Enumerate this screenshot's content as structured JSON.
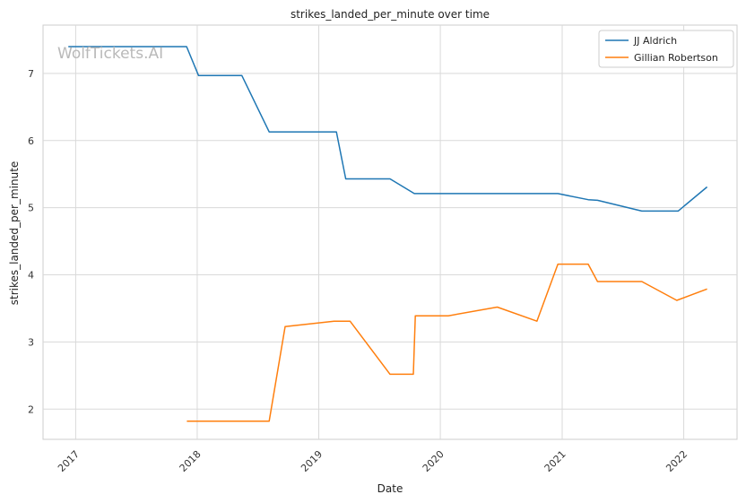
{
  "chart_data": {
    "type": "line",
    "title": "strikes_landed_per_minute over time",
    "xlabel": "Date",
    "ylabel": "strikes_landed_per_minute",
    "watermark": "WolfTickets.AI",
    "xlim": [
      "2016-09-25",
      "2022-06-10"
    ],
    "ylim": [
      1.55,
      7.72
    ],
    "x_ticks": [
      {
        "date": "2017-01-01",
        "label": "2017"
      },
      {
        "date": "2018-01-01",
        "label": "2018"
      },
      {
        "date": "2019-01-01",
        "label": "2019"
      },
      {
        "date": "2020-01-01",
        "label": "2020"
      },
      {
        "date": "2021-01-01",
        "label": "2021"
      },
      {
        "date": "2022-01-01",
        "label": "2022"
      }
    ],
    "y_ticks": [
      2,
      3,
      4,
      5,
      6,
      7
    ],
    "grid": true,
    "legend_position": "top-right",
    "series": [
      {
        "name": "JJ Aldrich",
        "color": "#1f77b4",
        "points": [
          [
            "2016-12-10",
            7.4
          ],
          [
            "2017-11-30",
            7.4
          ],
          [
            "2018-01-05",
            6.97
          ],
          [
            "2018-05-15",
            6.97
          ],
          [
            "2018-08-05",
            6.13
          ],
          [
            "2019-02-23",
            6.13
          ],
          [
            "2019-03-23",
            5.43
          ],
          [
            "2019-08-03",
            5.43
          ],
          [
            "2019-10-15",
            5.21
          ],
          [
            "2020-12-19",
            5.21
          ],
          [
            "2021-03-20",
            5.12
          ],
          [
            "2021-04-17",
            5.11
          ],
          [
            "2021-08-28",
            4.95
          ],
          [
            "2021-12-15",
            4.95
          ],
          [
            "2022-03-12",
            5.31
          ]
        ]
      },
      {
        "name": "Gillian Robertson",
        "color": "#ff7f0e",
        "points": [
          [
            "2017-12-01",
            1.82
          ],
          [
            "2018-08-05",
            1.82
          ],
          [
            "2018-09-22",
            3.23
          ],
          [
            "2019-02-16",
            3.31
          ],
          [
            "2019-04-05",
            3.31
          ],
          [
            "2019-08-03",
            2.52
          ],
          [
            "2019-10-12",
            2.52
          ],
          [
            "2019-10-18",
            3.39
          ],
          [
            "2020-01-25",
            3.39
          ],
          [
            "2020-06-20",
            3.52
          ],
          [
            "2020-10-17",
            3.31
          ],
          [
            "2020-12-19",
            4.16
          ],
          [
            "2021-03-20",
            4.16
          ],
          [
            "2021-04-17",
            3.9
          ],
          [
            "2021-08-28",
            3.9
          ],
          [
            "2021-12-11",
            3.62
          ],
          [
            "2022-03-12",
            3.79
          ]
        ]
      }
    ]
  }
}
